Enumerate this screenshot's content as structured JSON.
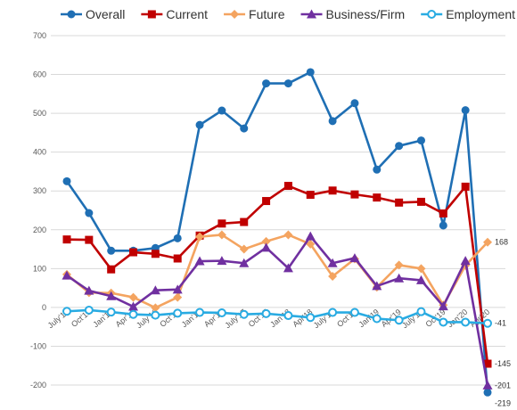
{
  "chart_data": {
    "type": "line",
    "title": "",
    "xlabel": "",
    "ylabel": "",
    "ylim": [
      -200,
      700
    ],
    "y_ticks": [
      "700",
      "600",
      "500",
      "400",
      "300",
      "200",
      "100",
      "0",
      "-100",
      "-200"
    ],
    "grid": true,
    "legend_position": "top",
    "categories": [
      "July'15",
      "Oct'15",
      "Jan'16",
      "Apr'16",
      "July'16",
      "Oct'16",
      "Jan'17",
      "Apr'17",
      "July'17",
      "Oct'17",
      "Jan'18",
      "Apr'18",
      "July'18",
      "Oct'18",
      "Jan'19",
      "Apr'19",
      "July'19",
      "Oct'19",
      "Jan'20",
      "Apr'20"
    ],
    "x_tick_labels": [
      "July'15",
      "Oct'15",
      "Jan'16",
      "Apr'16",
      "July'16",
      "Oct'16",
      "Jan'17",
      "Apr'17",
      "July'17",
      "Oct'17",
      "Jan'18",
      "Apr'18",
      "July'18",
      "Oct'18",
      "Jan'19",
      "Apr'19",
      "July'19",
      "Oct'19",
      "Jan'20",
      "Apr'20"
    ],
    "series": [
      {
        "name": "Overall",
        "color": "#1f6fb4",
        "marker": "circle",
        "values": [
          325,
          243,
          146,
          146,
          153,
          178,
          470,
          507,
          461,
          577,
          577,
          606,
          480,
          526,
          355,
          416,
          430,
          211,
          508,
          -219
        ]
      },
      {
        "name": "Current",
        "color": "#c00000",
        "marker": "square",
        "values": [
          175,
          174,
          98,
          142,
          138,
          126,
          185,
          216,
          220,
          274,
          313,
          290,
          301,
          291,
          283,
          270,
          272,
          242,
          311,
          -145
        ]
      },
      {
        "name": "Future",
        "color": "#f4a460",
        "marker": "diamond",
        "values": [
          85,
          38,
          37,
          26,
          -1,
          26,
          182,
          187,
          150,
          170,
          187,
          163,
          80,
          125,
          52,
          109,
          100,
          6,
          108,
          168
        ]
      },
      {
        "name": "Business/Firm",
        "color": "#7030a0",
        "marker": "triangle",
        "values": [
          82,
          43,
          29,
          2,
          44,
          46,
          119,
          120,
          114,
          154,
          101,
          183,
          114,
          127,
          55,
          75,
          70,
          3,
          120,
          -201
        ]
      },
      {
        "name": "Employment",
        "color": "#29abe2",
        "marker": "open-circle",
        "values": [
          -10,
          -7,
          -12,
          -18,
          -20,
          -15,
          -13,
          -14,
          -18,
          -16,
          -21,
          -26,
          -13,
          -13,
          -29,
          -33,
          -11,
          -38,
          -38,
          -41
        ]
      }
    ],
    "data_labels": [
      {
        "series": "Future",
        "text": "168"
      },
      {
        "series": "Employment",
        "text": "-41"
      },
      {
        "series": "Current",
        "text": "-145"
      },
      {
        "series": "Business/Firm",
        "text": "-201"
      },
      {
        "series": "Overall",
        "text": "-219"
      }
    ]
  }
}
